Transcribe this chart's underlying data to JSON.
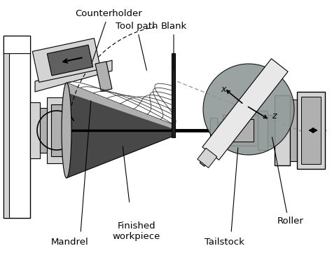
{
  "labels": {
    "counterholder": "Counterholder",
    "tool_path": "Tool path",
    "blank": "Blank",
    "finished_workpiece": "Finished\nworkpiece",
    "mandrel": "Mandrel",
    "tailstock": "Tailstock",
    "roller": "Roller",
    "x_axis": "x",
    "z_axis": "z"
  },
  "colors": {
    "white": "#ffffff",
    "light_gray": "#d4d4d4",
    "medium_gray": "#b0b0b0",
    "dark_gray": "#606060",
    "very_dark": "#2a2a2a",
    "black": "#000000",
    "roller_gray": "#909898",
    "blank_face": "#e8e8e8"
  }
}
